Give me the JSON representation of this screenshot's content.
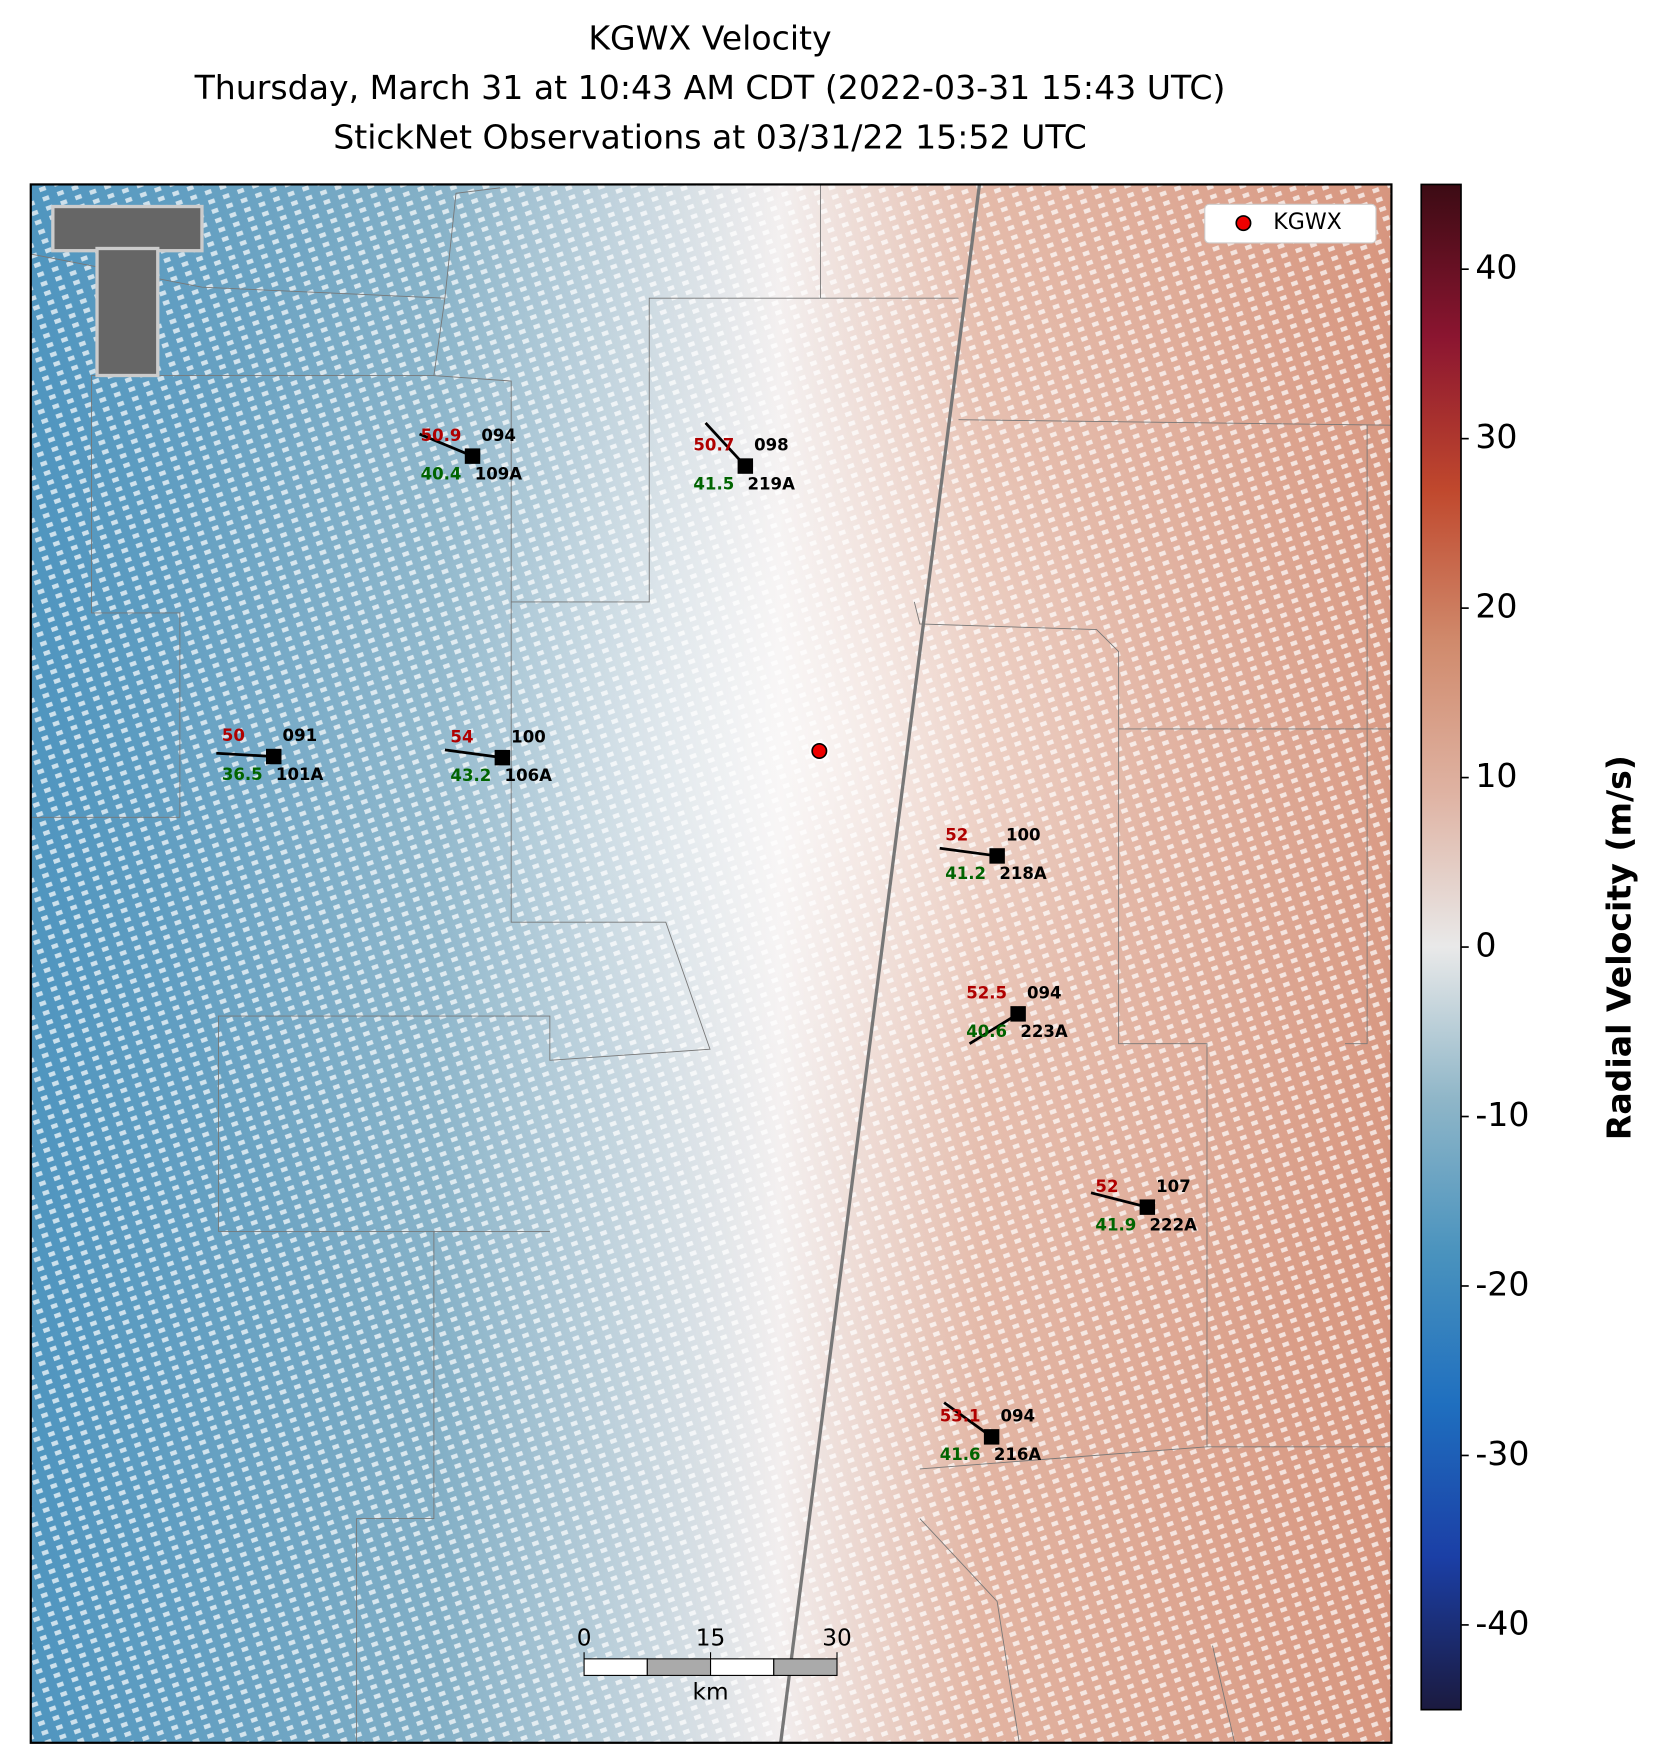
{
  "chart_data": {
    "type": "radar_map",
    "title": [
      "KGWX Velocity",
      "Thursday, March 31 at 10:43 AM CDT (2022-03-31 15:43 UTC)",
      "StickNet Observations at 03/31/22 15:52 UTC"
    ],
    "legend": "KGWX",
    "colorbar": {
      "label": "Radial Velocity (m/s)",
      "lim": [
        -45,
        45
      ],
      "ticks": [
        -40,
        -30,
        -20,
        -10,
        0,
        10,
        20,
        30,
        40
      ],
      "colors": [
        "#1b1a3f",
        "#1b3fa6",
        "#1f6fbf",
        "#4a93be",
        "#8fb6c8",
        "#e9e9e9",
        "#dfb3a3",
        "#d08a6c",
        "#c0482d",
        "#8b1530",
        "#3c0b14"
      ]
    },
    "scale_bar": {
      "ticks": [
        0,
        15,
        30
      ],
      "unit": "km"
    },
    "stations": [
      {
        "id": "109A",
        "temp": 50.9,
        "dew": 40.4,
        "pressure": "094"
      },
      {
        "id": "219A",
        "temp": 50.7,
        "dew": 41.5,
        "pressure": "098"
      },
      {
        "id": "101A",
        "temp": 50.0,
        "dew": 36.5,
        "pressure": "091"
      },
      {
        "id": "106A",
        "temp": 54.0,
        "dew": 43.2,
        "pressure": "100"
      },
      {
        "id": "218A",
        "temp": 52.0,
        "dew": 41.2,
        "pressure": "100"
      },
      {
        "id": "223A",
        "temp": 52.5,
        "dew": 40.6,
        "pressure": "094"
      },
      {
        "id": "222A",
        "temp": 52.0,
        "dew": 41.9,
        "pressure": "107"
      },
      {
        "id": "216A",
        "temp": 53.1,
        "dew": 41.6,
        "pressure": "094"
      }
    ]
  }
}
